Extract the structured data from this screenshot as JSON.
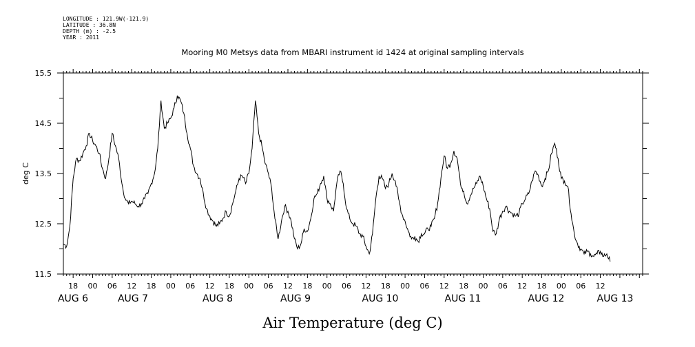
{
  "chart_data": {
    "type": "line",
    "metadata_lines": [
      "LONGITUDE : 121.9W(-121.9)",
      "LATITUDE : 36.8N",
      "DEPTH (m) : -2.5",
      "YEAR : 2011"
    ],
    "title": "Mooring M0 Metsys data from MBARI instrument id 1424 at original sampling intervals",
    "xlabel": "Air Temperature (deg C)",
    "ylabel": "deg C",
    "ylim": [
      11.5,
      15.5
    ],
    "y_ticks": [
      "11.5",
      "12.5",
      "13.5",
      "14.5",
      "15.5"
    ],
    "xlim_hours": [
      0,
      178
    ],
    "hour_tick_labels": [
      "18",
      "00",
      "06",
      "12",
      "18",
      "00",
      "06",
      "12",
      "18",
      "00",
      "06",
      "12",
      "18",
      "00",
      "06",
      "12",
      "18",
      "00",
      "06",
      "12",
      "18",
      "00",
      "06",
      "12",
      "18",
      "00",
      "06",
      "12"
    ],
    "date_labels": [
      "AUG  6",
      "AUG  7",
      "AUG  8",
      "AUG  9",
      "AUG 10",
      "AUG 11",
      "AUG 12",
      "AUG 13"
    ],
    "grid": false,
    "series": [
      {
        "values": [
          [
            0,
            12.1
          ],
          [
            1,
            12.05
          ],
          [
            2,
            12.45
          ],
          [
            3,
            13.4
          ],
          [
            4,
            13.8
          ],
          [
            5,
            13.75
          ],
          [
            6,
            13.9
          ],
          [
            7,
            14.05
          ],
          [
            8,
            14.3
          ],
          [
            9,
            14.15
          ],
          [
            10,
            14.05
          ],
          [
            11,
            13.9
          ],
          [
            12,
            13.6
          ],
          [
            13,
            13.4
          ],
          [
            14,
            13.8
          ],
          [
            15,
            14.3
          ],
          [
            16,
            14.05
          ],
          [
            17,
            13.8
          ],
          [
            18,
            13.3
          ],
          [
            19,
            13.0
          ],
          [
            20,
            12.9
          ],
          [
            21,
            12.95
          ],
          [
            22,
            12.9
          ],
          [
            23,
            12.85
          ],
          [
            24,
            12.9
          ],
          [
            25,
            13.0
          ],
          [
            26,
            13.1
          ],
          [
            27,
            13.3
          ],
          [
            28,
            13.5
          ],
          [
            29,
            14.0
          ],
          [
            30,
            14.95
          ],
          [
            31,
            14.4
          ],
          [
            32,
            14.5
          ],
          [
            33,
            14.6
          ],
          [
            34,
            14.8
          ],
          [
            35,
            15.05
          ],
          [
            36,
            14.95
          ],
          [
            37,
            14.7
          ],
          [
            38,
            14.3
          ],
          [
            39,
            14.0
          ],
          [
            40,
            13.65
          ],
          [
            41,
            13.5
          ],
          [
            42,
            13.4
          ],
          [
            43,
            13.1
          ],
          [
            44,
            12.8
          ],
          [
            45,
            12.65
          ],
          [
            46,
            12.55
          ],
          [
            47,
            12.45
          ],
          [
            48,
            12.5
          ],
          [
            49,
            12.6
          ],
          [
            50,
            12.75
          ],
          [
            51,
            12.65
          ],
          [
            52,
            12.9
          ],
          [
            53,
            13.15
          ],
          [
            54,
            13.4
          ],
          [
            55,
            13.45
          ],
          [
            56,
            13.3
          ],
          [
            57,
            13.5
          ],
          [
            58,
            14.0
          ],
          [
            59,
            14.95
          ],
          [
            60,
            14.3
          ],
          [
            61,
            14.05
          ],
          [
            62,
            13.7
          ],
          [
            63,
            13.5
          ],
          [
            64,
            13.2
          ],
          [
            65,
            12.6
          ],
          [
            66,
            12.2
          ],
          [
            67,
            12.55
          ],
          [
            68,
            12.85
          ],
          [
            69,
            12.75
          ],
          [
            70,
            12.55
          ],
          [
            71,
            12.2
          ],
          [
            72,
            12.0
          ],
          [
            73,
            12.1
          ],
          [
            74,
            12.4
          ],
          [
            75,
            12.35
          ],
          [
            76,
            12.6
          ],
          [
            77,
            13.0
          ],
          [
            78,
            13.1
          ],
          [
            79,
            13.3
          ],
          [
            80,
            13.45
          ],
          [
            81,
            13.0
          ],
          [
            82,
            12.9
          ],
          [
            83,
            12.75
          ],
          [
            84,
            13.3
          ],
          [
            85,
            13.55
          ],
          [
            86,
            13.3
          ],
          [
            87,
            12.8
          ],
          [
            88,
            12.6
          ],
          [
            89,
            12.5
          ],
          [
            90,
            12.45
          ],
          [
            91,
            12.3
          ],
          [
            92,
            12.25
          ],
          [
            93,
            12.05
          ],
          [
            94,
            11.9
          ],
          [
            95,
            12.3
          ],
          [
            96,
            13.0
          ],
          [
            97,
            13.45
          ],
          [
            98,
            13.4
          ],
          [
            99,
            13.2
          ],
          [
            100,
            13.3
          ],
          [
            101,
            13.5
          ],
          [
            102,
            13.35
          ],
          [
            103,
            13.0
          ],
          [
            104,
            12.7
          ],
          [
            105,
            12.55
          ],
          [
            106,
            12.35
          ],
          [
            107,
            12.2
          ],
          [
            108,
            12.25
          ],
          [
            109,
            12.15
          ],
          [
            110,
            12.3
          ],
          [
            111,
            12.3
          ],
          [
            112,
            12.4
          ],
          [
            113,
            12.45
          ],
          [
            114,
            12.6
          ],
          [
            115,
            12.9
          ],
          [
            116,
            13.4
          ],
          [
            117,
            13.85
          ],
          [
            118,
            13.6
          ],
          [
            119,
            13.7
          ],
          [
            120,
            13.95
          ],
          [
            121,
            13.8
          ],
          [
            122,
            13.3
          ],
          [
            123,
            13.15
          ],
          [
            124,
            12.9
          ],
          [
            125,
            13.05
          ],
          [
            126,
            13.2
          ],
          [
            127,
            13.3
          ],
          [
            128,
            13.45
          ],
          [
            129,
            13.25
          ],
          [
            130,
            13.0
          ],
          [
            131,
            12.8
          ],
          [
            132,
            12.35
          ],
          [
            133,
            12.3
          ],
          [
            134,
            12.6
          ],
          [
            135,
            12.75
          ],
          [
            136,
            12.85
          ],
          [
            137,
            12.75
          ],
          [
            138,
            12.7
          ],
          [
            139,
            12.65
          ],
          [
            140,
            12.7
          ],
          [
            141,
            12.9
          ],
          [
            142,
            13.0
          ],
          [
            143,
            13.1
          ],
          [
            144,
            13.35
          ],
          [
            145,
            13.55
          ],
          [
            146,
            13.45
          ],
          [
            147,
            13.25
          ],
          [
            148,
            13.4
          ],
          [
            149,
            13.55
          ],
          [
            150,
            13.9
          ],
          [
            151,
            14.1
          ],
          [
            152,
            13.8
          ],
          [
            153,
            13.4
          ],
          [
            154,
            13.35
          ],
          [
            155,
            13.25
          ],
          [
            156,
            12.7
          ],
          [
            157,
            12.3
          ],
          [
            158,
            12.1
          ],
          [
            159,
            12.0
          ],
          [
            160,
            11.9
          ],
          [
            161,
            11.95
          ],
          [
            162,
            11.9
          ],
          [
            163,
            11.85
          ],
          [
            164,
            11.9
          ],
          [
            165,
            11.95
          ],
          [
            166,
            11.85
          ],
          [
            167,
            11.9
          ],
          [
            168,
            11.75
          ]
        ]
      }
    ]
  }
}
